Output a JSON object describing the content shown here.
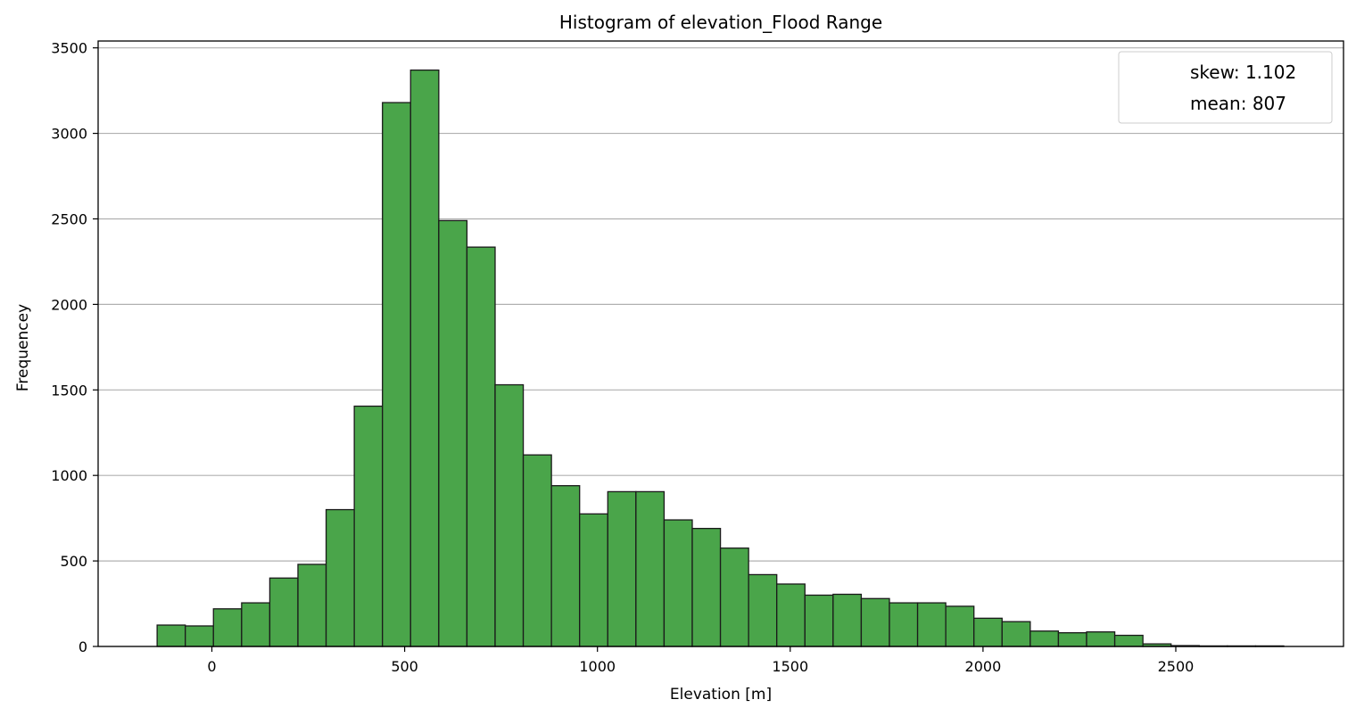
{
  "chart_data": {
    "type": "bar",
    "title": "Histogram of elevation_Flood Range",
    "xlabel": "Elevation [m]",
    "ylabel": "Frequencey",
    "xlim": [
      -295,
      2935
    ],
    "ylim": [
      0,
      3540
    ],
    "xticks": [
      0,
      500,
      1000,
      1500,
      2000,
      2500
    ],
    "yticks": [
      0,
      500,
      1000,
      1500,
      2000,
      2500,
      3000,
      3500
    ],
    "grid": "y",
    "legend_position": "top-right",
    "legend": [
      "skew: 1.102",
      "mean: 807"
    ],
    "bin_start": -142,
    "bin_width": 73.05,
    "values": [
      125,
      120,
      220,
      255,
      400,
      480,
      800,
      1405,
      3180,
      3370,
      2490,
      2335,
      1530,
      1120,
      940,
      775,
      905,
      905,
      740,
      690,
      575,
      420,
      365,
      300,
      305,
      280,
      255,
      255,
      235,
      165,
      145,
      90,
      80,
      85,
      65,
      15,
      5,
      3,
      3,
      3
    ],
    "bar_color": "#4aa54a",
    "edge_color": "#1a1a1a"
  }
}
